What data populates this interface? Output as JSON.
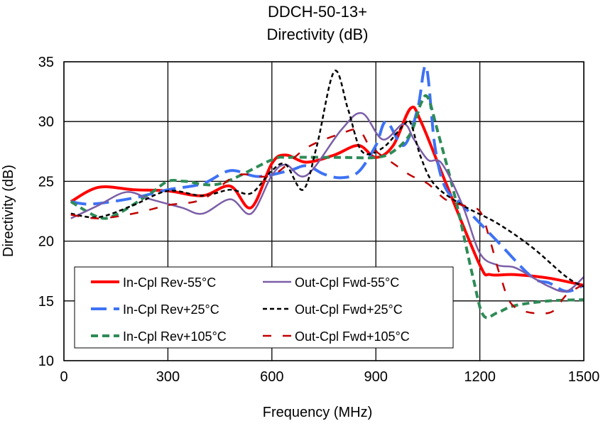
{
  "chart_data": {
    "type": "line",
    "title": "DDCH-50-13+",
    "subtitle": "Directivity (dB)",
    "xlabel": "Frequency (MHz)",
    "ylabel": "Directivity (dB)",
    "xlim": [
      0,
      1500
    ],
    "ylim": [
      10,
      35
    ],
    "xticks": [
      0,
      300,
      600,
      900,
      1200,
      1500
    ],
    "yticks": [
      10,
      15,
      20,
      25,
      30,
      35
    ],
    "grid": true,
    "legend_position": "bottom-left",
    "series": [
      {
        "name": "In-Cpl Rev-55°C",
        "color": "#ff0000",
        "style": "solid",
        "width": 4,
        "x": [
          20,
          100,
          200,
          300,
          400,
          480,
          540,
          600,
          640,
          700,
          780,
          850,
          900,
          950,
          1000,
          1030,
          1100,
          1200,
          1230,
          1300,
          1400,
          1500
        ],
        "y": [
          23.3,
          24.5,
          24.3,
          24.2,
          23.8,
          24.6,
          22.8,
          26.5,
          27.2,
          26.6,
          27.2,
          28,
          27,
          28,
          31.1,
          30,
          25,
          18,
          17.2,
          17.2,
          16.9,
          16.3
        ]
      },
      {
        "name": "In-Cpl Rev+25°C",
        "color": "#3d72f5",
        "style": "longdash",
        "width": 4,
        "x": [
          20,
          80,
          200,
          300,
          400,
          480,
          560,
          650,
          700,
          750,
          800,
          850,
          900,
          930,
          980,
          1020,
          1045,
          1070,
          1100,
          1150,
          1250,
          1350,
          1400,
          1450,
          1500
        ],
        "y": [
          23.3,
          23.1,
          23.6,
          24.3,
          24.8,
          25.9,
          25.4,
          25.9,
          26.3,
          25.6,
          25.3,
          25.8,
          28,
          30,
          28,
          31,
          34.6,
          28,
          24.5,
          23,
          20,
          17,
          16.5,
          15.8,
          16.3
        ]
      },
      {
        "name": "In-Cpl Rev+105°C",
        "color": "#2e8b57",
        "style": "dash",
        "width": 4,
        "x": [
          20,
          100,
          150,
          250,
          300,
          350,
          450,
          600,
          650,
          800,
          900,
          950,
          1000,
          1030,
          1050,
          1080,
          1130,
          1180,
          1210,
          1250,
          1300,
          1400,
          1500
        ],
        "y": [
          23.3,
          22,
          22.2,
          24,
          25,
          25,
          24.8,
          26.8,
          27,
          27,
          27,
          27.5,
          29,
          31.5,
          32,
          29,
          23.5,
          17,
          13.8,
          14,
          14.6,
          15,
          15.1
        ]
      },
      {
        "name": "Out-Cpl Fwd-55°C",
        "color": "#7b5ea7",
        "style": "solid",
        "width": 2.5,
        "x": [
          20,
          100,
          180,
          250,
          340,
          400,
          480,
          540,
          600,
          640,
          700,
          800,
          860,
          920,
          980,
          1010,
          1050,
          1090,
          1150,
          1200,
          1250,
          1300,
          1350,
          1400,
          1450,
          1500
        ],
        "y": [
          21.9,
          23,
          24.1,
          23.5,
          22.8,
          22.3,
          23.5,
          22.3,
          25.5,
          26.4,
          25.5,
          29.3,
          30.7,
          28.5,
          29.8,
          28.5,
          26.8,
          26.5,
          23,
          19,
          18,
          17.8,
          17,
          16.2,
          15.8,
          17
        ]
      },
      {
        "name": "Out-Cpl Fwd+25°C",
        "color": "#000000",
        "style": "shortdash",
        "width": 2.5,
        "x": [
          20,
          100,
          200,
          300,
          400,
          480,
          540,
          600,
          640,
          690,
          730,
          780,
          820,
          860,
          920,
          980,
          1000,
          1030,
          1070,
          1150,
          1250,
          1350,
          1450,
          1500
        ],
        "y": [
          22.3,
          22,
          23,
          24.2,
          23.8,
          24.3,
          24,
          25.9,
          26.4,
          24.3,
          28,
          34.2,
          31,
          27.5,
          27.8,
          29.7,
          29.9,
          27,
          24.7,
          23,
          21.5,
          19.5,
          17,
          16.2
        ]
      },
      {
        "name": "Out-Cpl Fwd+105°C",
        "color": "#c00000",
        "style": "sparsedash",
        "width": 2.5,
        "x": [
          20,
          100,
          200,
          300,
          400,
          500,
          600,
          700,
          800,
          850,
          880,
          900,
          950,
          1000,
          1050,
          1100,
          1150,
          1200,
          1230,
          1260,
          1300,
          1400,
          1450,
          1500
        ],
        "y": [
          22.2,
          21.9,
          22.3,
          23,
          23.5,
          25.5,
          25.5,
          27.8,
          29,
          29.3,
          28,
          27.5,
          26.5,
          25.5,
          24.8,
          23.5,
          23,
          22.5,
          20,
          17,
          14.5,
          14,
          15.5,
          16.4
        ]
      }
    ]
  }
}
